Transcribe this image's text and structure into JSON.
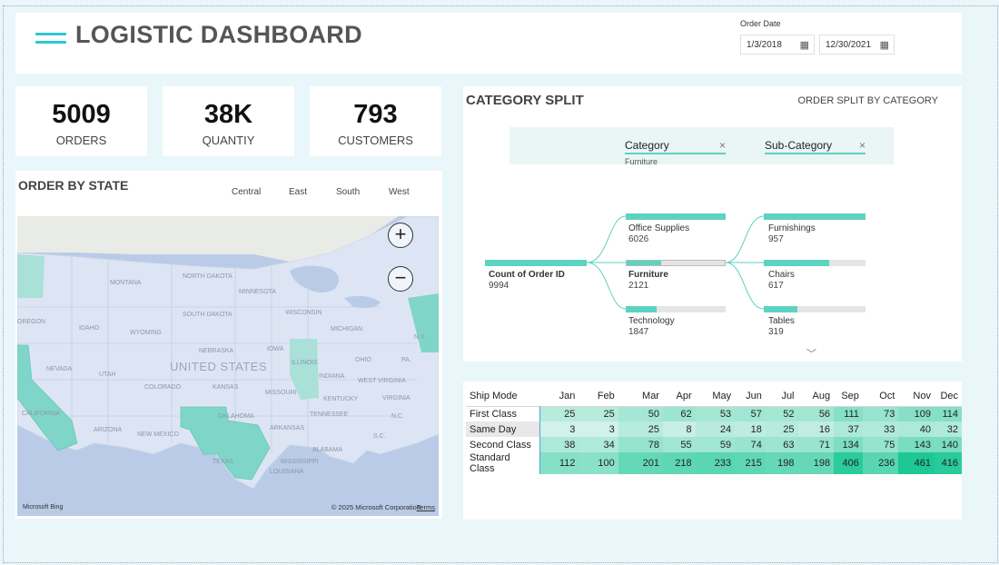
{
  "header": {
    "title": "LOGISTIC DASHBOARD",
    "order_date_label": "Order Date",
    "date_from": "1/3/2018",
    "date_to": "12/30/2021"
  },
  "kpis": [
    {
      "value": "5009",
      "label": "ORDERS"
    },
    {
      "value": "38K",
      "label": "QUANTIY"
    },
    {
      "value": "793",
      "label": "CUSTOMERS"
    }
  ],
  "map_card": {
    "title": "ORDER BY STATE",
    "legend": [
      "Central",
      "East",
      "South",
      "West"
    ],
    "country_label": "UNITED STATES",
    "states": [
      "NORTH DAKOTA",
      "MONTANA",
      "MINNESOTA",
      "SOUTH DAKOTA",
      "WISCONSIN",
      "OREGON",
      "IDAHO",
      "WYOMING",
      "MICHIGAN",
      "NEBRASKA",
      "IOWA",
      "N.Y.",
      "NEVADA",
      "UTAH",
      "ILLINOIS",
      "OHIO",
      "PA.",
      "INDIANA",
      "COLORADO",
      "KANSAS",
      "MISSOURI",
      "WEST VIRGINIA",
      "CALIFORNIA",
      "KENTUCKY",
      "VIRGINIA",
      "OKLAHOMA",
      "TENNESSEE",
      "N.C.",
      "ARIZONA",
      "NEW MEXICO",
      "S.C.",
      "ARKANSAS",
      "ALABAMA",
      "TEXAS",
      "MISSISSIPPI",
      "LOUISIANA"
    ],
    "zoom_in": "+",
    "zoom_out": "−",
    "bing": "Microsoft Bing",
    "copyright": "© 2025 Microsoft Corporation",
    "terms": "Terms",
    "colors": {
      "highlight": "#7fd6c8",
      "land": "#dde5f4",
      "water": "#b9cbe6"
    }
  },
  "category_card": {
    "title": "CATEGORY SPLIT",
    "subtitle": "ORDER SPLIT BY CATEGORY",
    "filters": [
      {
        "label": "Category",
        "value": "Furniture",
        "close": "×"
      },
      {
        "label": "Sub-Category",
        "value": "",
        "close": "×"
      }
    ],
    "root": {
      "label": "Count of Order ID",
      "value": "9994"
    },
    "level1": [
      {
        "label": "Office Supplies",
        "value": "6026",
        "fraction": 1.0
      },
      {
        "label": "Furniture",
        "value": "2121",
        "fraction": 0.35
      },
      {
        "label": "Technology",
        "value": "1847",
        "fraction": 0.31
      }
    ],
    "level2": [
      {
        "label": "Furnishings",
        "value": "957",
        "fraction": 1.0
      },
      {
        "label": "Chairs",
        "value": "617",
        "fraction": 0.64
      },
      {
        "label": "Tables",
        "value": "319",
        "fraction": 0.33
      }
    ],
    "expand_icon": "﹀",
    "accent": "#5dd3c0"
  },
  "ship_table": {
    "header": [
      "Ship Mode",
      "Jan",
      "Feb",
      "Mar",
      "Apr",
      "May",
      "Jun",
      "Jul",
      "Aug",
      "Sep",
      "Oct",
      "Nov",
      "Dec"
    ],
    "rows": [
      {
        "mode": "First Class",
        "values": [
          25,
          25,
          50,
          62,
          53,
          57,
          52,
          56,
          111,
          73,
          109,
          114
        ]
      },
      {
        "mode": "Same Day",
        "values": [
          3,
          3,
          25,
          8,
          24,
          18,
          25,
          16,
          37,
          33,
          40,
          32
        ]
      },
      {
        "mode": "Second Class",
        "values": [
          38,
          34,
          78,
          55,
          59,
          74,
          63,
          71,
          134,
          75,
          143,
          140
        ]
      },
      {
        "mode": "Standard Class",
        "values": [
          112,
          100,
          201,
          218,
          233,
          215,
          198,
          198,
          406,
          236,
          461,
          416
        ]
      }
    ]
  }
}
